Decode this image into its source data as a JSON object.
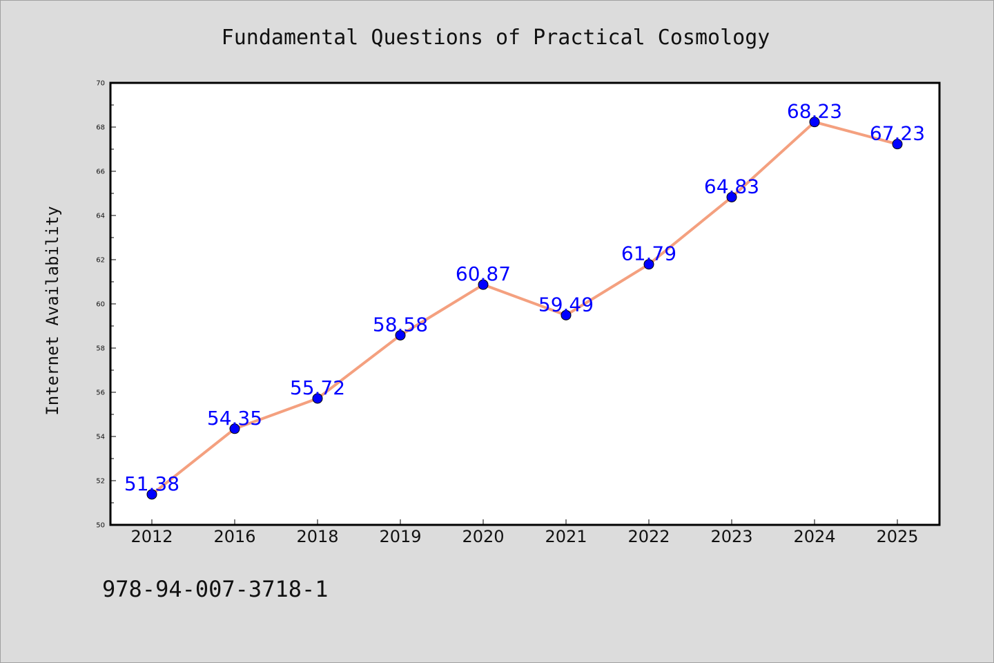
{
  "chart_data": {
    "type": "line",
    "title": "Fundamental Questions of Practical Cosmology",
    "xlabel": "",
    "ylabel": "Internet Availability",
    "categories": [
      "2012",
      "2016",
      "2018",
      "2019",
      "2020",
      "2021",
      "2022",
      "2023",
      "2024",
      "2025"
    ],
    "series": [
      {
        "values": [
          51.38,
          54.35,
          55.72,
          58.58,
          60.87,
          59.49,
          61.79,
          64.83,
          68.23,
          67.23
        ],
        "labels": [
          "51.38",
          "54.35",
          "55.72",
          "58.58",
          "60.87",
          "59.49",
          "61.79",
          "64.83",
          "68.23",
          "67.23"
        ]
      }
    ],
    "ylim": [
      50,
      70
    ],
    "yticks": [
      "50",
      "52",
      "54",
      "56",
      "58",
      "60",
      "62",
      "64",
      "66",
      "68",
      "70"
    ],
    "grid": false,
    "legend": "none",
    "colors": {
      "line": "#f4a07f",
      "marker": "#0000ff",
      "label": "#0000ff",
      "background": "#dcdcdc",
      "plot_bg": "#ffffff"
    }
  },
  "footnote": "978-94-007-3718-1"
}
